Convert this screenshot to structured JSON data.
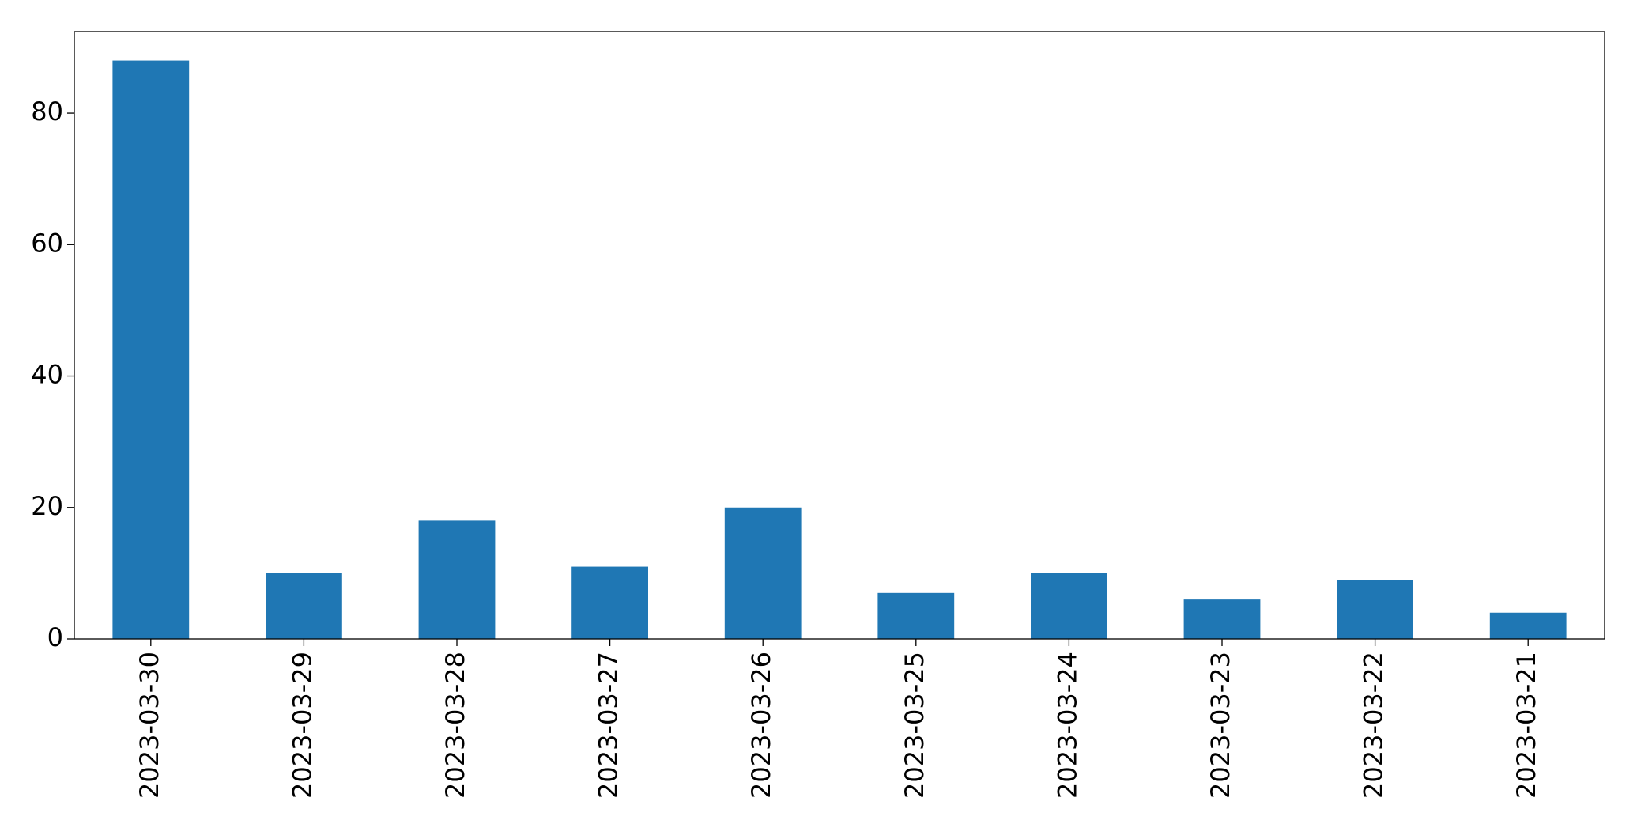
{
  "chart_data": {
    "type": "bar",
    "categories": [
      "2023-03-30",
      "2023-03-29",
      "2023-03-28",
      "2023-03-27",
      "2023-03-26",
      "2023-03-25",
      "2023-03-24",
      "2023-03-23",
      "2023-03-22",
      "2023-03-21"
    ],
    "values": [
      88,
      10,
      18,
      11,
      20,
      7,
      10,
      6,
      9,
      4
    ],
    "color": "#1f77b4",
    "ylim": [
      0,
      92.4
    ],
    "yticks": [
      0,
      20,
      40,
      60,
      80
    ],
    "grid": false
  }
}
